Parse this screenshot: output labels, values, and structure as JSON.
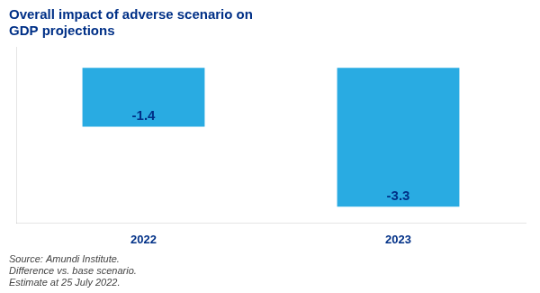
{
  "chart_data": {
    "type": "bar",
    "title": [
      "Overall impact of adverse scenario on",
      "GDP projections"
    ],
    "categories": [
      "2022",
      "2023"
    ],
    "values": [
      -1.4,
      -3.3
    ],
    "color": "#29ABE2",
    "ylim": [
      -3.7,
      0.5
    ],
    "grid": false,
    "tick_labels": "x",
    "data_labels": true,
    "annotations": [
      "Source: Amundi Institute.\nDifference vs. base scenario.\nEstimate at 25 July 2022."
    ]
  }
}
